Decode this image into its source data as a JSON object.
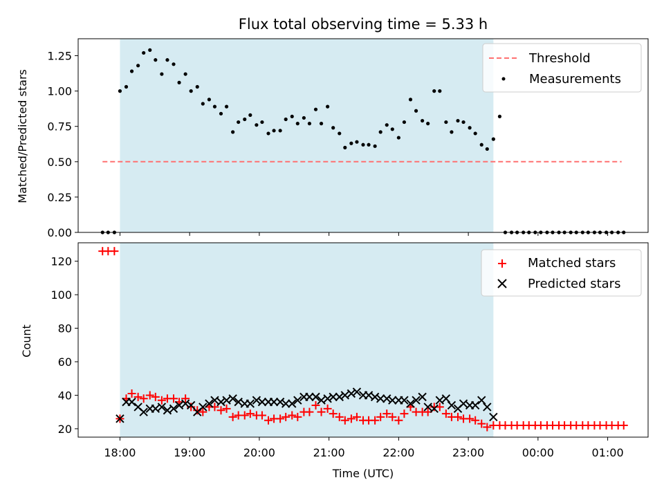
{
  "chart_data": [
    {
      "type": "scatter",
      "title": "Flux total observing time = 5.33 h",
      "xlabel": "",
      "ylabel": "Matched/Predicted stars",
      "x_unit": "hours (UTC, continuing past midnight)",
      "xlim": [
        17.4,
        25.58
      ],
      "ylim": [
        0,
        1.37
      ],
      "yticks": [
        0.0,
        0.25,
        0.5,
        0.75,
        1.0,
        1.25
      ],
      "ytick_labels": [
        "0.00",
        "0.25",
        "0.50",
        "0.75",
        "1.00",
        "1.25"
      ],
      "grid": false,
      "legend": "top-right",
      "observing_window": [
        18.0,
        23.36
      ],
      "threshold": {
        "name": "Threshold",
        "y": 0.5,
        "x_range": [
          17.75,
          25.2
        ],
        "color": "#ff7070"
      },
      "series": [
        {
          "name": "Measurements",
          "color": "#000000",
          "x": [
            17.75,
            17.83,
            17.92,
            18.0,
            18.09,
            18.17,
            18.26,
            18.34,
            18.43,
            18.51,
            18.6,
            18.68,
            18.77,
            18.85,
            18.94,
            19.02,
            19.11,
            19.19,
            19.28,
            19.36,
            19.45,
            19.53,
            19.62,
            19.7,
            19.79,
            19.87,
            19.96,
            20.04,
            20.13,
            20.21,
            20.3,
            20.38,
            20.47,
            20.55,
            20.64,
            20.72,
            20.81,
            20.89,
            20.98,
            21.06,
            21.15,
            21.23,
            21.32,
            21.4,
            21.49,
            21.57,
            21.66,
            21.74,
            21.83,
            21.91,
            22.0,
            22.08,
            22.17,
            22.25,
            22.34,
            22.42,
            22.51,
            22.59,
            22.68,
            22.76,
            22.85,
            22.93,
            23.02,
            23.1,
            23.19,
            23.27,
            23.36,
            23.45,
            23.53,
            23.62,
            23.7,
            23.79,
            23.87,
            23.96,
            24.04,
            24.13,
            24.21,
            24.3,
            24.38,
            24.47,
            24.55,
            24.64,
            24.72,
            24.81,
            24.89,
            24.98,
            25.06,
            25.15,
            25.23
          ],
          "y": [
            0,
            0,
            0,
            1.0,
            1.03,
            1.14,
            1.18,
            1.27,
            1.29,
            1.22,
            1.12,
            1.22,
            1.19,
            1.06,
            1.12,
            1.0,
            1.03,
            0.91,
            0.94,
            0.89,
            0.84,
            0.89,
            0.71,
            0.78,
            0.8,
            0.83,
            0.76,
            0.78,
            0.7,
            0.72,
            0.72,
            0.8,
            0.82,
            0.77,
            0.81,
            0.77,
            0.87,
            0.77,
            0.89,
            0.74,
            0.7,
            0.6,
            0.63,
            0.64,
            0.62,
            0.62,
            0.61,
            0.71,
            0.76,
            0.73,
            0.67,
            0.78,
            0.94,
            0.86,
            0.79,
            0.77,
            1.0,
            1.0,
            0.78,
            0.71,
            0.79,
            0.78,
            0.74,
            0.7,
            0.62,
            0.59,
            0.66,
            0.82,
            0,
            0,
            0,
            0,
            0,
            0,
            0,
            0,
            0,
            0,
            0,
            0,
            0,
            0,
            0,
            0,
            0,
            0,
            0,
            0,
            0
          ]
        }
      ]
    },
    {
      "type": "scatter",
      "title": "",
      "xlabel": "Time (UTC)",
      "ylabel": "Count",
      "x_unit": "hours (UTC, continuing past midnight)",
      "xlim": [
        17.4,
        25.58
      ],
      "ylim": [
        15,
        131
      ],
      "yticks": [
        20,
        40,
        60,
        80,
        100,
        120
      ],
      "xticks": [
        18,
        19,
        20,
        21,
        22,
        23,
        24,
        25
      ],
      "xtick_labels": [
        "18:00",
        "19:00",
        "20:00",
        "21:00",
        "22:00",
        "23:00",
        "00:00",
        "01:00"
      ],
      "grid": false,
      "legend": "top-right",
      "observing_window": [
        18.0,
        23.36
      ],
      "series": [
        {
          "name": "Matched stars",
          "marker": "plus",
          "color": "#ff0000",
          "x": [
            17.75,
            17.83,
            17.92,
            18.0,
            18.09,
            18.17,
            18.26,
            18.34,
            18.43,
            18.51,
            18.6,
            18.68,
            18.77,
            18.85,
            18.94,
            19.02,
            19.11,
            19.19,
            19.28,
            19.36,
            19.45,
            19.53,
            19.62,
            19.7,
            19.79,
            19.87,
            19.96,
            20.04,
            20.13,
            20.21,
            20.3,
            20.38,
            20.47,
            20.55,
            20.64,
            20.72,
            20.81,
            20.89,
            20.98,
            21.06,
            21.15,
            21.23,
            21.32,
            21.4,
            21.49,
            21.57,
            21.66,
            21.74,
            21.83,
            21.91,
            22.0,
            22.08,
            22.17,
            22.25,
            22.34,
            22.42,
            22.51,
            22.59,
            22.68,
            22.76,
            22.85,
            22.93,
            23.02,
            23.1,
            23.19,
            23.27,
            23.36,
            23.45,
            23.53,
            23.62,
            23.7,
            23.79,
            23.87,
            23.96,
            24.04,
            24.13,
            24.21,
            24.3,
            24.38,
            24.47,
            24.55,
            24.64,
            24.72,
            24.81,
            24.89,
            24.98,
            25.06,
            25.15,
            25.23
          ],
          "y": [
            126,
            126,
            126,
            26,
            38,
            41,
            39,
            38,
            40,
            39,
            37,
            38,
            38,
            36,
            38,
            33,
            31,
            30,
            33,
            33,
            31,
            32,
            27,
            28,
            28,
            29,
            28,
            28,
            25,
            26,
            26,
            27,
            28,
            27,
            30,
            30,
            34,
            30,
            32,
            29,
            27,
            25,
            26,
            27,
            25,
            25,
            25,
            27,
            29,
            27,
            25,
            29,
            33,
            30,
            30,
            30,
            33,
            33,
            29,
            27,
            27,
            26,
            26,
            25,
            23,
            21,
            22,
            22,
            22,
            22,
            22,
            22,
            22,
            22,
            22,
            22,
            22,
            22,
            22,
            22,
            22,
            22,
            22,
            22,
            22,
            22,
            22,
            22,
            22
          ]
        },
        {
          "name": "Predicted stars",
          "marker": "x",
          "color": "#000000",
          "x": [
            18.0,
            18.09,
            18.17,
            18.26,
            18.34,
            18.43,
            18.51,
            18.6,
            18.68,
            18.77,
            18.85,
            18.94,
            19.02,
            19.11,
            19.19,
            19.28,
            19.36,
            19.45,
            19.53,
            19.62,
            19.7,
            19.79,
            19.87,
            19.96,
            20.04,
            20.13,
            20.21,
            20.3,
            20.38,
            20.47,
            20.55,
            20.64,
            20.72,
            20.81,
            20.89,
            20.98,
            21.06,
            21.15,
            21.23,
            21.32,
            21.4,
            21.49,
            21.57,
            21.66,
            21.74,
            21.83,
            21.91,
            22.0,
            22.08,
            22.17,
            22.25,
            22.34,
            22.42,
            22.51,
            22.59,
            22.68,
            22.76,
            22.85,
            22.93,
            23.02,
            23.1,
            23.19,
            23.27,
            23.36
          ],
          "y": [
            26,
            36,
            36,
            33,
            30,
            32,
            32,
            33,
            31,
            32,
            34,
            35,
            34,
            30,
            33,
            35,
            37,
            36,
            37,
            38,
            36,
            35,
            35,
            37,
            36,
            36,
            36,
            36,
            35,
            35,
            37,
            39,
            39,
            39,
            37,
            38,
            39,
            39,
            40,
            41,
            42,
            40,
            40,
            39,
            38,
            38,
            37,
            37,
            37,
            35,
            37,
            39,
            33,
            32,
            37,
            38,
            34,
            32,
            35,
            34,
            34,
            37,
            33,
            27
          ]
        }
      ]
    }
  ]
}
